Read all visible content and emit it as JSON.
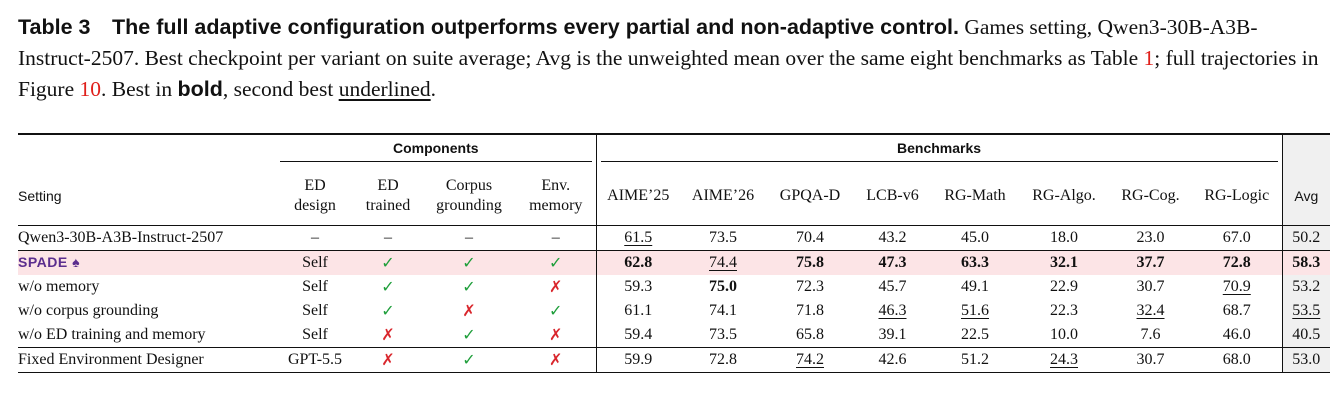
{
  "caption": {
    "label": "Table 3",
    "lead": "The full adaptive configuration outperforms every partial and non-adaptive control.",
    "segments": [
      {
        "text": "Games setting, Qwen3-30B-A3B-Instruct-2507. Best checkpoint per variant on suite average; Avg is the unweighted mean over the same eight benchmarks as Table "
      },
      {
        "text": "1",
        "style": "ref"
      },
      {
        "text": "; full trajectories in Figure "
      },
      {
        "text": "10",
        "style": "ref"
      },
      {
        "text": ". Best in "
      },
      {
        "text": "bold",
        "style": "bold"
      },
      {
        "text": ", second best "
      },
      {
        "text": "underlined",
        "style": "underline"
      },
      {
        "text": "."
      }
    ]
  },
  "table": {
    "groups": [
      {
        "label": "Components",
        "span": 4
      },
      {
        "label": "Benchmarks",
        "span": 8
      }
    ],
    "columns": [
      {
        "lines": [
          "Setting"
        ],
        "style": "sans"
      },
      {
        "lines": [
          "ED",
          "design"
        ]
      },
      {
        "lines": [
          "ED",
          "trained"
        ]
      },
      {
        "lines": [
          "Corpus",
          "grounding"
        ]
      },
      {
        "lines": [
          "Env.",
          "memory"
        ]
      },
      {
        "lines": [
          "AIME’25"
        ]
      },
      {
        "lines": [
          "AIME’26"
        ]
      },
      {
        "lines": [
          "GPQA-D"
        ]
      },
      {
        "lines": [
          "LCB-v6"
        ]
      },
      {
        "lines": [
          "RG-Math"
        ]
      },
      {
        "lines": [
          "RG-Algo."
        ]
      },
      {
        "lines": [
          "RG-Cog."
        ]
      },
      {
        "lines": [
          "RG-Logic"
        ]
      },
      {
        "lines": [
          "Avg"
        ],
        "style": "sans"
      }
    ],
    "mark_colors": {
      "✓": "#1e9e3a",
      "✗": "#d9262c"
    },
    "sections": [
      [
        {
          "cells": [
            "Qwen3-30B-A3B-Instruct-2507",
            "–",
            "–",
            "–",
            "–",
            "61.5",
            "73.5",
            "70.4",
            "43.2",
            "45.0",
            "18.0",
            "23.0",
            "67.0",
            "50.2"
          ],
          "bold": [],
          "underline": [
            5
          ]
        }
      ],
      [
        {
          "cells": [
            "SPADE ♠",
            "Self",
            "✓",
            "✓",
            "✓",
            "62.8",
            "74.4",
            "75.8",
            "47.3",
            "63.3",
            "32.1",
            "37.7",
            "72.8",
            "58.3"
          ],
          "bold": [
            5,
            7,
            8,
            9,
            10,
            11,
            12,
            13
          ],
          "underline": [
            6
          ],
          "highlight": true,
          "style": "spade"
        },
        {
          "cells": [
            "w/o memory",
            "Self",
            "✓",
            "✓",
            "✗",
            "59.3",
            "75.0",
            "72.3",
            "45.7",
            "49.1",
            "22.9",
            "30.7",
            "70.9",
            "53.2"
          ],
          "bold": [
            6
          ],
          "underline": [
            12
          ]
        },
        {
          "cells": [
            "w/o corpus grounding",
            "Self",
            "✓",
            "✗",
            "✓",
            "61.1",
            "74.1",
            "71.8",
            "46.3",
            "51.6",
            "22.3",
            "32.4",
            "68.7",
            "53.5"
          ],
          "bold": [],
          "underline": [
            8,
            9,
            11,
            13
          ]
        },
        {
          "cells": [
            "w/o ED training and memory",
            "Self",
            "✗",
            "✓",
            "✗",
            "59.4",
            "73.5",
            "65.8",
            "39.1",
            "22.5",
            "10.0",
            "7.6",
            "46.0",
            "40.5"
          ],
          "bold": [],
          "underline": []
        }
      ],
      [
        {
          "cells": [
            "Fixed Environment Designer",
            "GPT-5.5",
            "✗",
            "✓",
            "✗",
            "59.9",
            "72.8",
            "74.2",
            "42.6",
            "51.2",
            "24.3",
            "30.7",
            "68.0",
            "53.0"
          ],
          "bold": [],
          "underline": [
            7,
            10
          ]
        }
      ]
    ]
  }
}
